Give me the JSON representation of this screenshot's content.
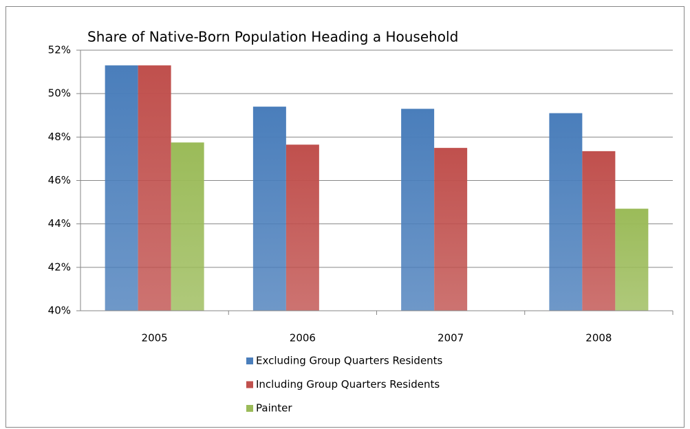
{
  "chart_data": {
    "type": "bar",
    "title": "Share of Native-Born Population Heading a Household",
    "categories": [
      "2005",
      "2006",
      "2007",
      "2008"
    ],
    "series": [
      {
        "name": "Excluding Group Quarters Residents",
        "color": "#4a7ebb",
        "values": [
          51.3,
          49.4,
          49.3,
          49.1
        ]
      },
      {
        "name": "Including Group Quarters Residents",
        "color": "#c0504d",
        "values": [
          51.3,
          47.65,
          47.5,
          47.35
        ]
      },
      {
        "name": "Painter",
        "color": "#9bbb59",
        "values": [
          47.75,
          null,
          null,
          44.7
        ]
      }
    ],
    "ylim": [
      40,
      52
    ],
    "yticks": [
      {
        "value": 40,
        "label": "40%"
      },
      {
        "value": 42,
        "label": "42%"
      },
      {
        "value": 44,
        "label": "44%"
      },
      {
        "value": 46,
        "label": "46%"
      },
      {
        "value": 48,
        "label": "48%"
      },
      {
        "value": 50,
        "label": "50%"
      },
      {
        "value": 52,
        "label": "52%"
      }
    ],
    "grid": true,
    "legend": "bottom"
  }
}
